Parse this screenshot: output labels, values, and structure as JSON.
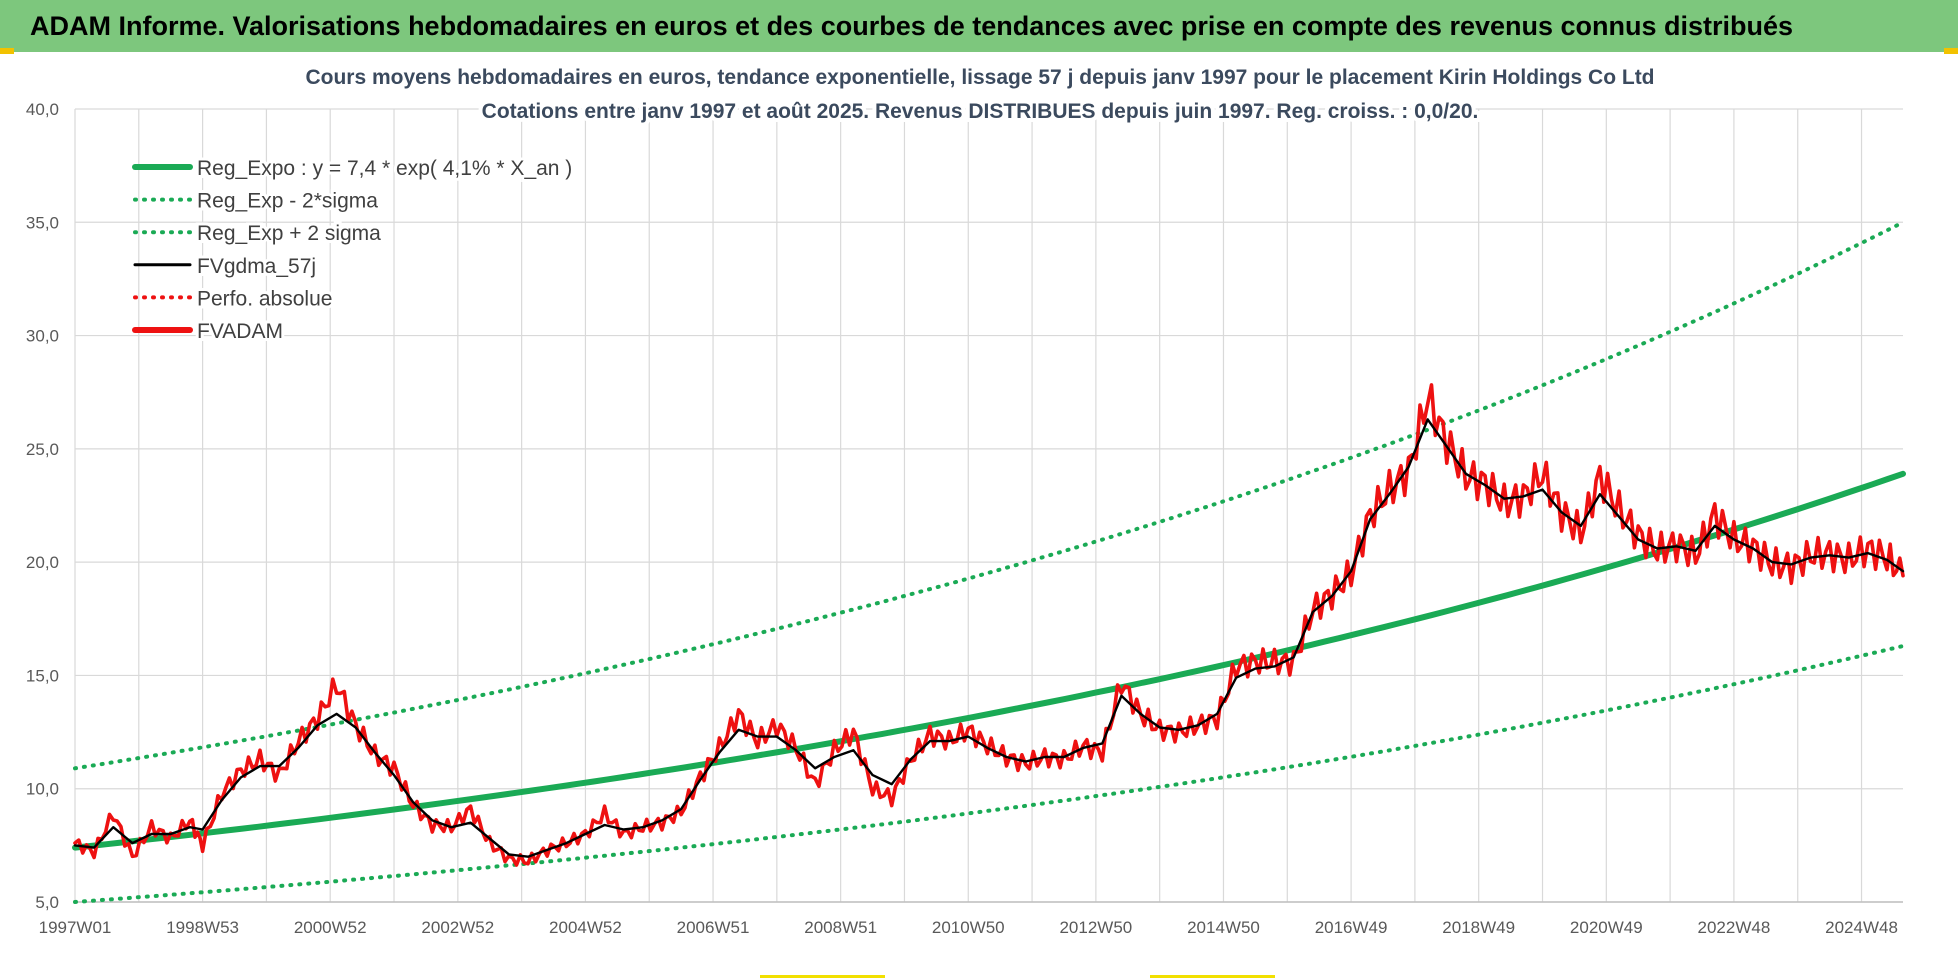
{
  "header": {
    "title": "ADAM Informe. Valorisations hebdomadaires en euros et des courbes de tendances avec prise en compte des revenus connus distribués"
  },
  "colors": {
    "header_bg": "#7dc77d",
    "trend": "#1aaa55",
    "fv": "#000000",
    "adam": "#ee1111",
    "grid": "#d9d9d9"
  },
  "chart_data": {
    "type": "line",
    "title_lines": [
      "Cours moyens hebdomadaires en euros, tendance exponentielle, lissage 57 j depuis janv 1997  pour le placement Kirin Holdings Co Ltd",
      "Cotations entre janv 1997 et août 2025.  Revenus DISTRIBUES depuis juin 1997.  Reg. croiss. : 0,0/20."
    ],
    "ylim": [
      5,
      40
    ],
    "yticks": [
      "5,0",
      "10,0",
      "15,0",
      "20,0",
      "25,0",
      "30,0",
      "35,0",
      "40,0"
    ],
    "x_range": [
      1997.0,
      2025.65
    ],
    "x_ticks": [
      {
        "label": "1997W01",
        "x": 1997.0
      },
      {
        "label": "1998W53",
        "x": 1999.0
      },
      {
        "label": "2000W52",
        "x": 2001.0
      },
      {
        "label": "2002W52",
        "x": 2003.0
      },
      {
        "label": "2004W52",
        "x": 2005.0
      },
      {
        "label": "2006W51",
        "x": 2007.0
      },
      {
        "label": "2008W51",
        "x": 2009.0
      },
      {
        "label": "2010W50",
        "x": 2011.0
      },
      {
        "label": "2012W50",
        "x": 2013.0
      },
      {
        "label": "2014W50",
        "x": 2015.0
      },
      {
        "label": "2016W49",
        "x": 2017.0
      },
      {
        "label": "2018W49",
        "x": 2019.0
      },
      {
        "label": "2020W49",
        "x": 2021.0
      },
      {
        "label": "2022W48",
        "x": 2023.0
      },
      {
        "label": "2024W48",
        "x": 2025.0
      }
    ],
    "legend": [
      {
        "label": "Reg_Expo : y = 7,4 * exp( 4,1% *  X_an )",
        "style": "solid-thick",
        "color": "#1aaa55"
      },
      {
        "label": "Reg_Exp - 2*sigma",
        "style": "dotted",
        "color": "#1aaa55"
      },
      {
        "label": "Reg_Exp + 2 sigma",
        "style": "dotted",
        "color": "#1aaa55"
      },
      {
        "label": "FVgdma_57j",
        "style": "solid",
        "color": "#000000"
      },
      {
        "label": "Perfo. absolue",
        "style": "dotted",
        "color": "#ee1111"
      },
      {
        "label": "FVADAM",
        "style": "solid-thick",
        "color": "#ee1111"
      }
    ],
    "regression": {
      "a": 7.4,
      "rate": 0.041,
      "x0": 1997.0
    },
    "series": [
      {
        "name": "Reg_Expo : y = 7,4 * exp( 4,1% *  X_an )",
        "x": [
          1997.0,
          2025.65
        ],
        "values": [
          7.4,
          23.9
        ],
        "curve": "exponential"
      },
      {
        "name": "Reg_Exp - 2*sigma",
        "x": [
          1997.0,
          2025.65
        ],
        "values": [
          5.0,
          16.3
        ],
        "curve": "exponential"
      },
      {
        "name": "Reg_Exp + 2 sigma",
        "x": [
          1997.0,
          2025.65
        ],
        "values": [
          10.9,
          35.0
        ],
        "curve": "exponential"
      },
      {
        "name": "FVADAM",
        "x": [
          1997.0,
          1997.3,
          1997.6,
          1997.9,
          1998.2,
          1998.5,
          1998.8,
          1999.0,
          1999.3,
          1999.6,
          1999.9,
          2000.2,
          2000.5,
          2000.8,
          2001.1,
          2001.4,
          2001.7,
          2002.0,
          2002.3,
          2002.6,
          2002.9,
          2003.2,
          2003.5,
          2003.8,
          2004.1,
          2004.4,
          2004.7,
          2005.0,
          2005.3,
          2005.6,
          2005.9,
          2006.2,
          2006.5,
          2006.8,
          2007.1,
          2007.4,
          2007.7,
          2008.0,
          2008.3,
          2008.6,
          2008.9,
          2009.2,
          2009.5,
          2009.8,
          2010.1,
          2010.4,
          2010.7,
          2011.0,
          2011.3,
          2011.6,
          2011.9,
          2012.2,
          2012.5,
          2012.8,
          2013.1,
          2013.4,
          2013.7,
          2014.0,
          2014.3,
          2014.6,
          2014.9,
          2015.2,
          2015.5,
          2015.8,
          2016.1,
          2016.4,
          2016.7,
          2017.0,
          2017.3,
          2017.6,
          2017.9,
          2018.2,
          2018.5,
          2018.8,
          2019.1,
          2019.4,
          2019.7,
          2020.0,
          2020.3,
          2020.6,
          2020.9,
          2021.2,
          2021.5,
          2021.8,
          2022.1,
          2022.4,
          2022.7,
          2023.0,
          2023.3,
          2023.6,
          2023.9,
          2024.2,
          2024.5,
          2024.8,
          2025.1,
          2025.4,
          2025.65
        ],
        "values": [
          7.6,
          7.2,
          8.9,
          7.0,
          8.3,
          7.8,
          8.6,
          7.5,
          9.8,
          10.8,
          11.3,
          10.6,
          12.1,
          13.1,
          14.6,
          12.8,
          11.5,
          10.9,
          9.3,
          8.4,
          8.3,
          9.1,
          7.6,
          6.9,
          6.8,
          7.3,
          7.6,
          8.0,
          8.9,
          8.0,
          8.3,
          8.5,
          9.0,
          10.5,
          11.8,
          13.3,
          12.1,
          12.8,
          11.8,
          10.2,
          11.7,
          12.5,
          10.0,
          9.6,
          11.3,
          12.4,
          12.1,
          12.6,
          11.9,
          11.4,
          11.1,
          11.4,
          11.3,
          11.9,
          11.6,
          14.7,
          13.3,
          12.6,
          12.5,
          12.8,
          13.1,
          15.4,
          15.6,
          15.6,
          15.6,
          17.9,
          18.6,
          19.5,
          22.1,
          23.2,
          24.0,
          27.3,
          25.3,
          23.8,
          23.5,
          22.6,
          22.9,
          23.9,
          22.2,
          21.3,
          23.8,
          22.3,
          21.2,
          20.5,
          20.8,
          20.3,
          22.1,
          21.0,
          20.7,
          19.9,
          19.8,
          20.3,
          20.4,
          20.1,
          20.6,
          20.2,
          19.4
        ]
      },
      {
        "name": "FVgdma_57j",
        "x": [
          1997.0,
          1997.3,
          1997.6,
          1997.9,
          1998.2,
          1998.5,
          1998.8,
          1999.0,
          1999.3,
          1999.6,
          1999.9,
          2000.2,
          2000.5,
          2000.8,
          2001.1,
          2001.4,
          2001.7,
          2002.0,
          2002.3,
          2002.6,
          2002.9,
          2003.2,
          2003.5,
          2003.8,
          2004.1,
          2004.4,
          2004.7,
          2005.0,
          2005.3,
          2005.6,
          2005.9,
          2006.2,
          2006.5,
          2006.8,
          2007.1,
          2007.4,
          2007.7,
          2008.0,
          2008.3,
          2008.6,
          2008.9,
          2009.2,
          2009.5,
          2009.8,
          2010.1,
          2010.4,
          2010.7,
          2011.0,
          2011.3,
          2011.6,
          2011.9,
          2012.2,
          2012.5,
          2012.8,
          2013.1,
          2013.4,
          2013.7,
          2014.0,
          2014.3,
          2014.6,
          2014.9,
          2015.2,
          2015.5,
          2015.8,
          2016.1,
          2016.4,
          2016.7,
          2017.0,
          2017.3,
          2017.6,
          2017.9,
          2018.2,
          2018.5,
          2018.8,
          2019.1,
          2019.4,
          2019.7,
          2020.0,
          2020.3,
          2020.6,
          2020.9,
          2021.2,
          2021.5,
          2021.8,
          2022.1,
          2022.4,
          2022.7,
          2023.0,
          2023.3,
          2023.6,
          2023.9,
          2024.2,
          2024.5,
          2024.8,
          2025.1,
          2025.4,
          2025.65
        ],
        "values": [
          7.5,
          7.4,
          8.3,
          7.6,
          8.0,
          8.0,
          8.3,
          8.2,
          9.5,
          10.5,
          11.0,
          11.0,
          11.8,
          12.8,
          13.3,
          12.7,
          11.6,
          10.6,
          9.4,
          8.6,
          8.3,
          8.5,
          7.8,
          7.1,
          7.0,
          7.3,
          7.6,
          8.0,
          8.4,
          8.2,
          8.3,
          8.6,
          9.1,
          10.4,
          11.6,
          12.6,
          12.3,
          12.3,
          11.7,
          10.9,
          11.4,
          11.7,
          10.6,
          10.2,
          11.3,
          12.1,
          12.1,
          12.3,
          11.8,
          11.4,
          11.2,
          11.4,
          11.4,
          11.8,
          12.0,
          14.1,
          13.3,
          12.7,
          12.6,
          12.8,
          13.3,
          14.9,
          15.3,
          15.4,
          15.8,
          17.8,
          18.5,
          19.6,
          21.9,
          23.0,
          24.2,
          26.3,
          25.1,
          23.9,
          23.4,
          22.8,
          22.9,
          23.2,
          22.2,
          21.6,
          23.0,
          22.0,
          21.0,
          20.6,
          20.7,
          20.5,
          21.6,
          21.0,
          20.6,
          20.0,
          19.9,
          20.2,
          20.3,
          20.2,
          20.4,
          20.1,
          19.6
        ]
      }
    ]
  }
}
